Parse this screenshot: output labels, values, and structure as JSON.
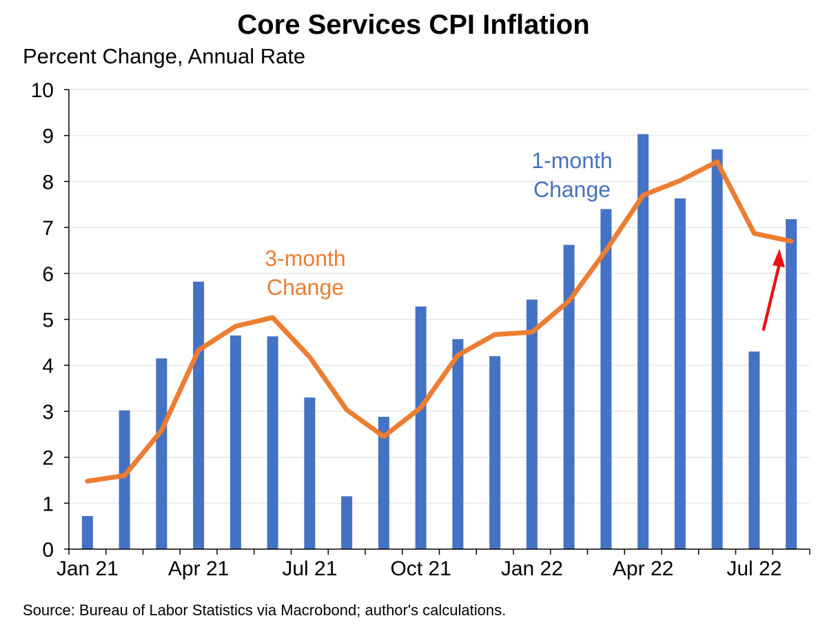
{
  "chart_data": {
    "type": "bar+line",
    "title": "Core Services CPI Inflation",
    "subtitle": "Percent Change, Annual Rate",
    "source": "Source: Bureau of Labor Statistics via Macrobond; author's calculations.",
    "ylim": [
      0,
      10
    ],
    "y_ticks": [
      "0",
      "1",
      "2",
      "3",
      "4",
      "5",
      "6",
      "7",
      "8",
      "9",
      "10"
    ],
    "grid": true,
    "months": [
      "Jan 21",
      "Feb 21",
      "Mar 21",
      "Apr 21",
      "May 21",
      "Jun 21",
      "Jul 21",
      "Aug 21",
      "Sep 21",
      "Oct 21",
      "Nov 21",
      "Dec 21",
      "Jan 22",
      "Feb 22",
      "Mar 22",
      "Apr 22",
      "May 22",
      "Jun 22",
      "Jul 22",
      "Aug 22"
    ],
    "x_tick_labels": [
      {
        "index": 0,
        "label": "Jan 21"
      },
      {
        "index": 3,
        "label": "Apr 21"
      },
      {
        "index": 6,
        "label": "Jul 21"
      },
      {
        "index": 9,
        "label": "Oct 21"
      },
      {
        "index": 12,
        "label": "Jan 22"
      },
      {
        "index": 15,
        "label": "Apr 22"
      },
      {
        "index": 18,
        "label": "Jul 22"
      }
    ],
    "series": [
      {
        "name": "1-month Change",
        "kind": "bar",
        "color": "#4472c4",
        "values": [
          0.72,
          3.02,
          4.15,
          5.82,
          4.65,
          4.63,
          3.3,
          1.15,
          2.88,
          5.28,
          4.57,
          4.2,
          5.43,
          6.62,
          7.4,
          9.03,
          7.63,
          8.7,
          4.3,
          7.18
        ]
      },
      {
        "name": "3-month Change",
        "kind": "line",
        "color": "#ed7d31",
        "values": [
          1.48,
          1.6,
          2.58,
          4.33,
          4.85,
          5.04,
          4.18,
          3.03,
          2.45,
          3.08,
          4.22,
          4.67,
          4.72,
          5.4,
          6.5,
          7.7,
          8.02,
          8.43,
          6.87,
          6.7
        ]
      }
    ],
    "annotations": [
      {
        "lines": [
          "1-month",
          "Change"
        ],
        "color": "#4472c4"
      },
      {
        "lines": [
          "3-month",
          "Change"
        ],
        "color": "#ed7d31"
      }
    ],
    "arrow_color": "#ee1111"
  }
}
